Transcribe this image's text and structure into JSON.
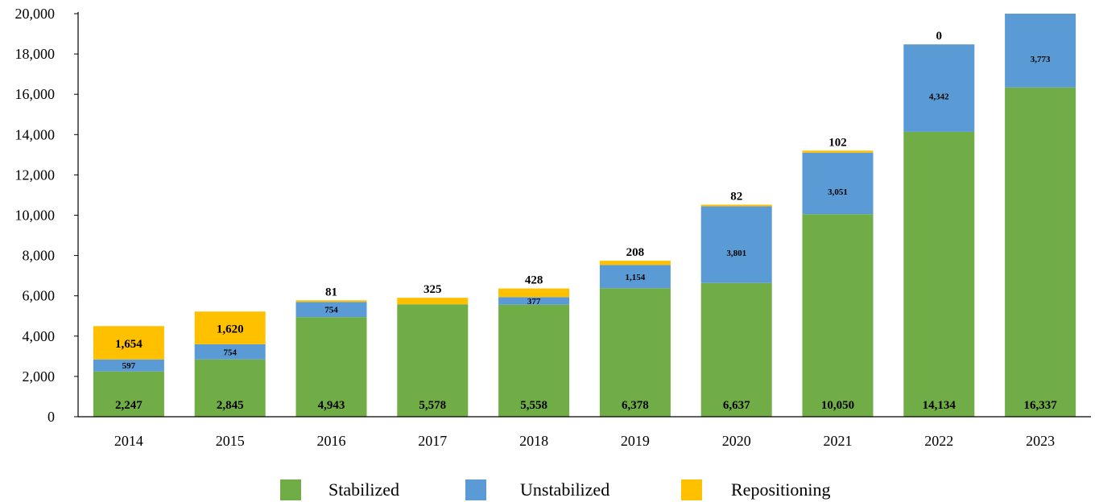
{
  "chart_data": {
    "type": "bar",
    "stacked": true,
    "categories": [
      "2014",
      "2015",
      "2016",
      "2017",
      "2018",
      "2019",
      "2020",
      "2021",
      "2022",
      "2023"
    ],
    "series": [
      {
        "name": "Stabilized",
        "color": "#70AD47",
        "values": [
          2247,
          2845,
          4943,
          5578,
          5558,
          6378,
          6637,
          10050,
          14134,
          16337
        ],
        "labels": [
          "2,247",
          "2,845",
          "4,943",
          "5,578",
          "5,558",
          "6,378",
          "6,637",
          "10,050",
          "14,134",
          "16,337"
        ]
      },
      {
        "name": "Unstabilized",
        "color": "#5B9BD5",
        "values": [
          597,
          754,
          754,
          0,
          377,
          1154,
          3801,
          3051,
          4342,
          3773
        ],
        "labels": [
          "597",
          "754",
          "754",
          null,
          "377",
          "1,154",
          "3,801",
          "3,051",
          "4,342",
          "3,773"
        ]
      },
      {
        "name": "Repositioning",
        "color": "#FFC000",
        "values": [
          1654,
          1620,
          81,
          325,
          428,
          208,
          82,
          102,
          0,
          0
        ],
        "labels": [
          "1,654",
          "1,620",
          "81",
          "325",
          "428",
          "208",
          "82",
          "102",
          "0",
          null
        ]
      }
    ],
    "yticks": [
      "0",
      "2,000",
      "4,000",
      "6,000",
      "8,000",
      "10,000",
      "12,000",
      "14,000",
      "16,000",
      "18,000",
      "20,000"
    ],
    "ylim": [
      0,
      20000
    ],
    "legend_position": "bottom-center",
    "grid": false
  }
}
